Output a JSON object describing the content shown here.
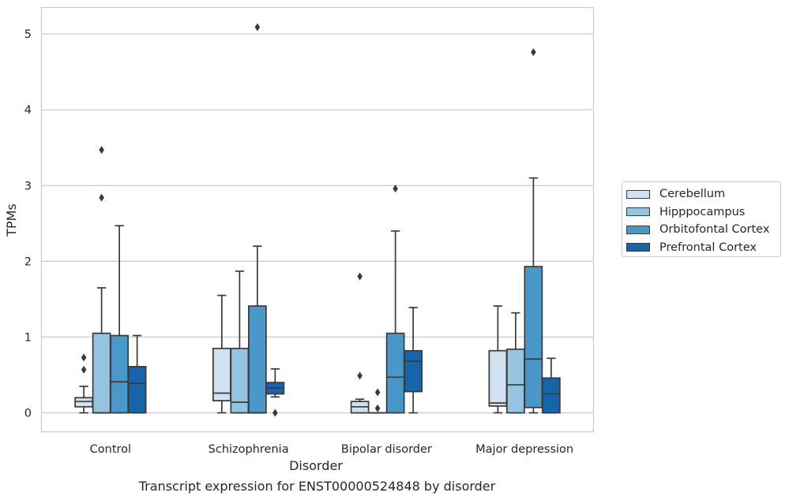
{
  "chart_data": {
    "type": "boxplot",
    "title": "Transcript expression for ENST00000524848 by disorder",
    "xlabel": "Disorder",
    "ylabel": "TPMs",
    "ylim": [
      -0.25,
      5.35
    ],
    "yticks": [
      "0",
      "1",
      "2",
      "3",
      "4",
      "5"
    ],
    "grid": true,
    "legend_position": "right",
    "categories": [
      "Control",
      "Schizophrenia",
      "Bipolar disorder",
      "Major depression"
    ],
    "series": [
      {
        "name": "Cerebellum",
        "color": "#d0e1f2",
        "boxes": [
          {
            "whisker_low": 0.0,
            "q1": 0.08,
            "median": 0.15,
            "q3": 0.2,
            "whisker_high": 0.35,
            "outliers": [
              0.57,
              0.73
            ]
          },
          {
            "whisker_low": 0.0,
            "q1": 0.16,
            "median": 0.26,
            "q3": 0.85,
            "whisker_high": 1.55,
            "outliers": []
          },
          {
            "whisker_low": 0.0,
            "q1": 0.0,
            "median": 0.08,
            "q3": 0.15,
            "whisker_high": 0.18,
            "outliers": [
              0.49,
              1.8
            ]
          },
          {
            "whisker_low": 0.0,
            "q1": 0.09,
            "median": 0.13,
            "q3": 0.82,
            "whisker_high": 1.41,
            "outliers": []
          }
        ]
      },
      {
        "name": "Hipppocampus",
        "color": "#94c4df",
        "boxes": [
          {
            "whisker_low": 0.0,
            "q1": 0.0,
            "median": 0.0,
            "q3": 1.05,
            "whisker_high": 1.65,
            "outliers": [
              2.84,
              3.47
            ]
          },
          {
            "whisker_low": 0.0,
            "q1": 0.0,
            "median": 0.14,
            "q3": 0.85,
            "whisker_high": 1.87,
            "outliers": []
          },
          {
            "whisker_low": 0.0,
            "q1": 0.0,
            "median": 0.0,
            "q3": 0.0,
            "whisker_high": 0.0,
            "outliers": [
              0.06,
              0.27
            ]
          },
          {
            "whisker_low": 0.0,
            "q1": 0.0,
            "median": 0.37,
            "q3": 0.84,
            "whisker_high": 1.32,
            "outliers": []
          }
        ]
      },
      {
        "name": "Orbitofontal Cortex",
        "color": "#4a98c9",
        "boxes": [
          {
            "whisker_low": 0.0,
            "q1": 0.0,
            "median": 0.41,
            "q3": 1.02,
            "whisker_high": 2.47,
            "outliers": []
          },
          {
            "whisker_low": 0.0,
            "q1": 0.0,
            "median": 0.0,
            "q3": 1.41,
            "whisker_high": 2.2,
            "outliers": [
              5.09
            ]
          },
          {
            "whisker_low": 0.0,
            "q1": 0.0,
            "median": 0.47,
            "q3": 1.05,
            "whisker_high": 2.4,
            "outliers": [
              2.96
            ]
          },
          {
            "whisker_low": 0.0,
            "q1": 0.07,
            "median": 0.71,
            "q3": 1.93,
            "whisker_high": 3.1,
            "outliers": [
              4.76
            ]
          }
        ]
      },
      {
        "name": "Prefrontal Cortex",
        "color": "#1764ab",
        "boxes": [
          {
            "whisker_low": 0.0,
            "q1": 0.0,
            "median": 0.39,
            "q3": 0.61,
            "whisker_high": 1.02,
            "outliers": []
          },
          {
            "whisker_low": 0.21,
            "q1": 0.25,
            "median": 0.33,
            "q3": 0.4,
            "whisker_high": 0.58,
            "outliers": [
              0.0
            ]
          },
          {
            "whisker_low": 0.0,
            "q1": 0.28,
            "median": 0.68,
            "q3": 0.82,
            "whisker_high": 1.39,
            "outliers": []
          },
          {
            "whisker_low": 0.0,
            "q1": 0.0,
            "median": 0.25,
            "q3": 0.46,
            "whisker_high": 0.72,
            "outliers": []
          }
        ]
      }
    ]
  }
}
